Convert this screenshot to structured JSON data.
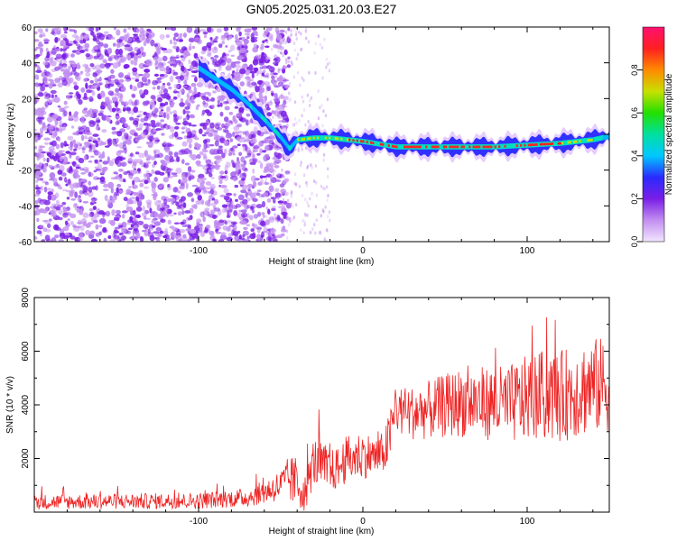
{
  "title": "GN05.2025.031.20.03.E27",
  "chart_data": [
    {
      "type": "heatmap",
      "xlabel": "Height of straight line (km)",
      "ylabel": "Frequency (Hz)",
      "xlim": [
        -200,
        150
      ],
      "ylim": [
        -60,
        60
      ],
      "x_ticks": [
        -100,
        0,
        100
      ],
      "y_ticks": [
        -60,
        -40,
        -20,
        0,
        20,
        40,
        60
      ],
      "colorbar": {
        "label": "Normalized spectral amplitude",
        "range": [
          0,
          1
        ],
        "ticks": [
          0.0,
          0.2,
          0.4,
          0.6,
          0.8
        ],
        "colors": [
          "#f2e6ff",
          "#c28ef0",
          "#7a1ee6",
          "#2a2aff",
          "#00c8ff",
          "#00e0a0",
          "#22e000",
          "#c8e000",
          "#ff8a00",
          "#ff2020",
          "#ff1070"
        ]
      },
      "noise_region": {
        "x_range": [
          -200,
          -45
        ],
        "y_range": [
          -60,
          60
        ],
        "amplitude": [
          0.05,
          0.25
        ]
      },
      "trace": {
        "x": [
          -100,
          -90,
          -80,
          -70,
          -60,
          -50,
          -45,
          -40,
          -30,
          -20,
          -10,
          0,
          20,
          40,
          60,
          80,
          100,
          120,
          140,
          150
        ],
        "frequency": [
          37,
          31,
          25,
          17,
          8,
          -2,
          -8,
          -3,
          -2,
          -2,
          -3,
          -4,
          -7,
          -7,
          -7,
          -7,
          -6,
          -5,
          -3,
          -1
        ],
        "amplitude": [
          0.2,
          0.22,
          0.3,
          0.45,
          0.55,
          0.5,
          0.45,
          0.6,
          0.7,
          0.75,
          0.8,
          0.85,
          0.9,
          0.9,
          0.9,
          0.85,
          0.85,
          0.8,
          0.6,
          0.5
        ]
      }
    },
    {
      "type": "line",
      "xlabel": "Height of straight line (km)",
      "ylabel": "SNR (10 * v/v)",
      "xlim": [
        -200,
        150
      ],
      "ylim": [
        0,
        8000
      ],
      "x_ticks": [
        -100,
        0,
        100
      ],
      "y_ticks": [
        2000,
        4000,
        6000,
        8000
      ],
      "series": [
        {
          "color": "#ee2222",
          "envelope": {
            "x": [
              -200,
              -100,
              -70,
              -60,
              -50,
              -45,
              -40,
              -35,
              -30,
              -25,
              -20,
              -15,
              -10,
              0,
              10,
              15,
              20,
              30,
              40,
              50,
              60,
              80,
              90,
              100,
              110,
              120,
              130,
              140,
              150
            ],
            "mean": [
              380,
              420,
              550,
              750,
              1000,
              1200,
              1100,
              700,
              1900,
              1700,
              1500,
              1650,
              1950,
              2150,
              2050,
              2500,
              3800,
              3700,
              3800,
              3950,
              4100,
              4050,
              4000,
              4250,
              4350,
              4300,
              4550,
              4700,
              4750
            ],
            "spread": [
              280,
              300,
              350,
              450,
              600,
              900,
              1000,
              700,
              900,
              1000,
              800,
              800,
              900,
              900,
              700,
              1000,
              900,
              1000,
              1100,
              1200,
              1300,
              1400,
              1500,
              1600,
              1700,
              1700,
              1800,
              1800,
              1800
            ]
          }
        }
      ]
    }
  ]
}
